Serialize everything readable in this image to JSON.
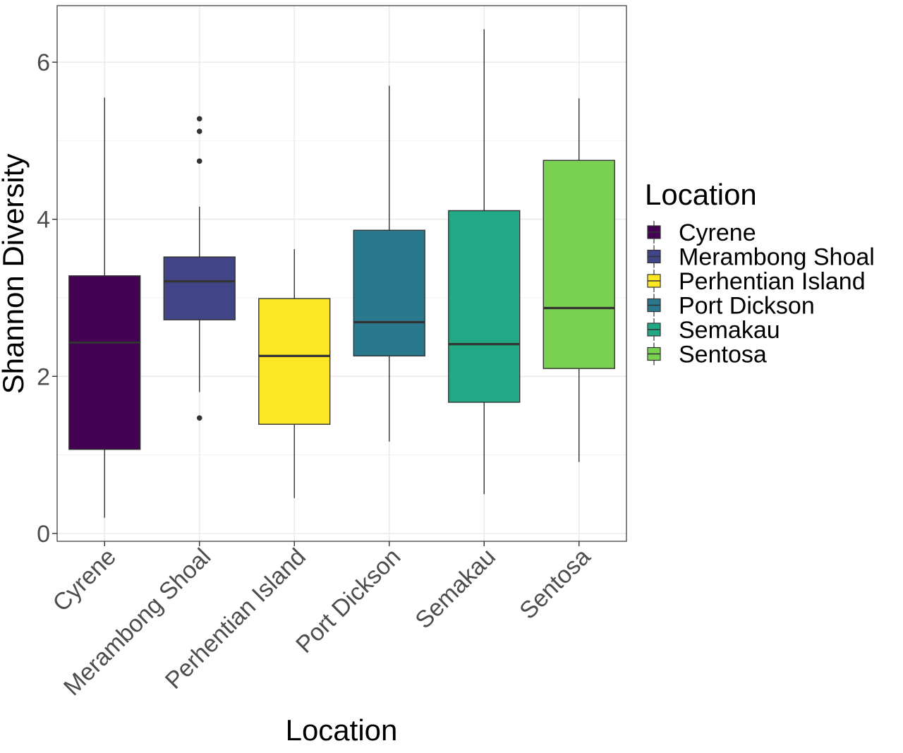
{
  "chart_data": {
    "type": "box",
    "xlabel": "Location",
    "ylabel": "Shannon Diversity",
    "ylim": [
      -0.1,
      6.72
    ],
    "yticks": [
      0,
      2,
      4,
      6
    ],
    "ytick_labels": [
      "0",
      "2",
      "4",
      "6"
    ],
    "grid": true,
    "legend": {
      "title": "Location",
      "position": "right"
    },
    "categories": [
      "Cyrene",
      "Merambong Shoal",
      "Perhentian Island",
      "Port Dickson",
      "Semakau",
      "Sentosa"
    ],
    "series": [
      {
        "name": "Cyrene",
        "color": "#440154",
        "min": 0.2,
        "q1": 1.07,
        "median": 2.43,
        "q3": 3.28,
        "max": 5.55,
        "outliers": []
      },
      {
        "name": "Merambong Shoal",
        "color": "#414487",
        "min": 1.8,
        "q1": 2.72,
        "median": 3.21,
        "q3": 3.52,
        "max": 4.16,
        "outliers": [
          1.47,
          4.74,
          5.12,
          5.28
        ]
      },
      {
        "name": "Perhentian Island",
        "color": "#FDE725",
        "min": 0.45,
        "q1": 1.39,
        "median": 2.26,
        "q3": 2.99,
        "max": 3.62,
        "outliers": []
      },
      {
        "name": "Port Dickson",
        "color": "#2A788E",
        "min": 1.17,
        "q1": 2.26,
        "median": 2.69,
        "q3": 3.86,
        "max": 5.7,
        "outliers": []
      },
      {
        "name": "Semakau",
        "color": "#22A884",
        "min": 0.5,
        "q1": 1.67,
        "median": 2.41,
        "q3": 4.11,
        "max": 6.42,
        "outliers": []
      },
      {
        "name": "Sentosa",
        "color": "#7AD151",
        "min": 0.91,
        "q1": 2.1,
        "median": 2.87,
        "q3": 4.75,
        "max": 5.54,
        "outliers": []
      }
    ]
  }
}
